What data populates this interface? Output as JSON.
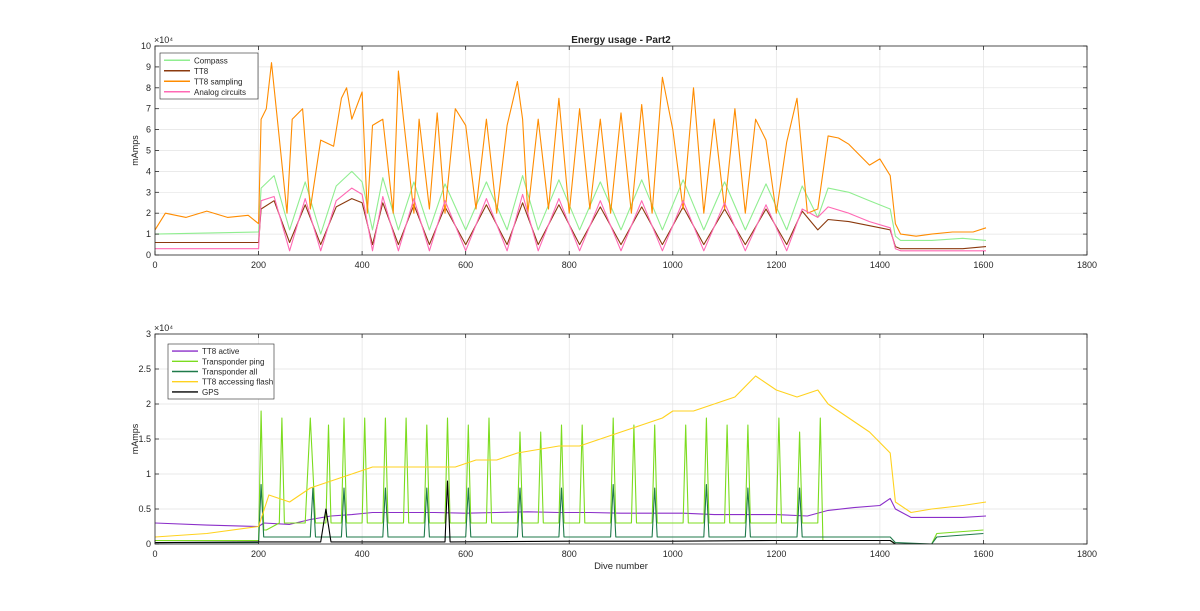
{
  "figure": {
    "title": "Energy usage - Part2"
  },
  "chart_data": [
    {
      "type": "line",
      "title": "Energy usage - Part2",
      "xlabel": "",
      "ylabel": "mAmps",
      "exponent_label": "×10⁴",
      "xlim": [
        0,
        1800
      ],
      "ylim": [
        0,
        10
      ],
      "y_scale_factor": 10000,
      "xticks": [
        0,
        200,
        400,
        600,
        800,
        1000,
        1200,
        1400,
        1600,
        1800
      ],
      "yticks": [
        0,
        1,
        2,
        3,
        4,
        5,
        6,
        7,
        8,
        9,
        10
      ],
      "grid": true,
      "legend_position": "top-left",
      "series": [
        {
          "name": "Compass",
          "color": "#90ee90",
          "x": [
            0,
            200,
            205,
            230,
            260,
            290,
            320,
            350,
            380,
            400,
            420,
            440,
            470,
            500,
            530,
            560,
            600,
            640,
            680,
            710,
            740,
            780,
            820,
            860,
            900,
            940,
            980,
            1020,
            1060,
            1100,
            1140,
            1180,
            1220,
            1250,
            1280,
            1300,
            1340,
            1380,
            1420,
            1430,
            1440,
            1500,
            1560,
            1605
          ],
          "y": [
            1.0,
            1.1,
            3.2,
            3.8,
            1.2,
            3.5,
            1.0,
            3.3,
            4.0,
            3.5,
            1.2,
            3.7,
            1.2,
            3.5,
            1.2,
            3.4,
            1.2,
            3.5,
            1.2,
            3.8,
            1.2,
            3.6,
            1.2,
            3.5,
            1.2,
            3.6,
            1.2,
            3.6,
            1.2,
            3.5,
            1.2,
            3.4,
            1.2,
            3.3,
            1.8,
            3.2,
            3.0,
            2.6,
            2.2,
            0.9,
            0.7,
            0.7,
            0.8,
            0.7
          ]
        },
        {
          "name": "TT8",
          "color": "#8b3a0e",
          "x": [
            0,
            200,
            205,
            230,
            260,
            290,
            320,
            350,
            380,
            400,
            420,
            440,
            470,
            500,
            530,
            560,
            600,
            640,
            680,
            710,
            740,
            780,
            820,
            860,
            900,
            940,
            980,
            1020,
            1060,
            1100,
            1140,
            1180,
            1220,
            1250,
            1280,
            1300,
            1340,
            1380,
            1420,
            1430,
            1440,
            1500,
            1560,
            1605
          ],
          "y": [
            0.6,
            0.6,
            2.2,
            2.6,
            0.6,
            2.4,
            0.5,
            2.3,
            2.7,
            2.5,
            0.5,
            2.5,
            0.5,
            2.4,
            0.5,
            2.3,
            0.5,
            2.4,
            0.5,
            2.5,
            0.5,
            2.4,
            0.5,
            2.3,
            0.5,
            2.3,
            0.5,
            2.3,
            0.5,
            2.2,
            0.5,
            2.2,
            0.5,
            2.1,
            1.2,
            1.7,
            1.6,
            1.4,
            1.2,
            0.4,
            0.3,
            0.3,
            0.3,
            0.4
          ]
        },
        {
          "name": "TT8 sampling",
          "color": "#ff8c00",
          "x": [
            0,
            20,
            60,
            100,
            140,
            180,
            200,
            205,
            215,
            225,
            235,
            255,
            265,
            285,
            300,
            320,
            345,
            360,
            370,
            380,
            400,
            410,
            420,
            440,
            460,
            470,
            480,
            500,
            510,
            530,
            545,
            560,
            580,
            600,
            620,
            640,
            660,
            680,
            700,
            710,
            720,
            740,
            760,
            780,
            800,
            820,
            840,
            860,
            880,
            900,
            920,
            940,
            960,
            980,
            1000,
            1020,
            1040,
            1060,
            1080,
            1100,
            1120,
            1140,
            1160,
            1180,
            1200,
            1220,
            1240,
            1260,
            1280,
            1300,
            1320,
            1340,
            1360,
            1380,
            1400,
            1420,
            1430,
            1440,
            1470,
            1500,
            1540,
            1580,
            1605
          ],
          "y": [
            1.2,
            2.0,
            1.8,
            2.1,
            1.8,
            1.9,
            1.5,
            6.5,
            7.0,
            9.2,
            6.8,
            2.0,
            6.5,
            7.0,
            2.2,
            5.5,
            5.2,
            7.5,
            8.0,
            6.5,
            7.8,
            2.0,
            6.2,
            6.5,
            2.0,
            8.8,
            6.5,
            2.0,
            6.5,
            2.2,
            6.8,
            2.0,
            7.0,
            6.2,
            2.2,
            6.5,
            2.0,
            6.2,
            8.3,
            6.5,
            2.0,
            6.5,
            2.2,
            7.5,
            2.0,
            7.0,
            2.2,
            6.5,
            2.0,
            6.8,
            2.0,
            7.2,
            2.0,
            8.5,
            6.0,
            2.2,
            8.0,
            2.0,
            6.5,
            2.2,
            7.0,
            2.0,
            6.5,
            5.5,
            2.0,
            5.4,
            7.5,
            2.0,
            2.2,
            5.7,
            5.6,
            5.3,
            4.8,
            4.3,
            4.6,
            3.8,
            1.5,
            1.0,
            0.9,
            1.0,
            1.1,
            1.1,
            1.3
          ]
        },
        {
          "name": "Analog circuits",
          "color": "#ff69b4",
          "x": [
            0,
            200,
            205,
            230,
            260,
            290,
            320,
            350,
            380,
            400,
            420,
            440,
            470,
            500,
            530,
            560,
            600,
            640,
            680,
            710,
            740,
            780,
            820,
            860,
            900,
            940,
            980,
            1020,
            1060,
            1100,
            1140,
            1180,
            1220,
            1250,
            1280,
            1300,
            1340,
            1380,
            1420,
            1430,
            1440,
            1500,
            1560,
            1605
          ],
          "y": [
            0.3,
            0.3,
            2.6,
            2.8,
            0.2,
            2.7,
            0.2,
            2.6,
            3.2,
            2.9,
            0.2,
            2.8,
            0.2,
            2.7,
            0.2,
            2.6,
            0.2,
            2.7,
            0.2,
            2.9,
            0.2,
            2.7,
            0.2,
            2.6,
            0.2,
            2.6,
            0.2,
            2.6,
            0.2,
            2.5,
            0.2,
            2.4,
            0.2,
            2.2,
            1.8,
            2.3,
            2.0,
            1.6,
            1.3,
            0.3,
            0.2,
            0.2,
            0.2,
            0.2
          ]
        }
      ]
    },
    {
      "type": "line",
      "title": "",
      "xlabel": "Dive number",
      "ylabel": "mAmps",
      "exponent_label": "×10⁴",
      "xlim": [
        0,
        1800
      ],
      "ylim": [
        0,
        3
      ],
      "y_scale_factor": 10000,
      "xticks": [
        0,
        200,
        400,
        600,
        800,
        1000,
        1200,
        1400,
        1600,
        1800
      ],
      "yticks": [
        0,
        0.5,
        1,
        1.5,
        2,
        2.5,
        3
      ],
      "ytick_labels": [
        "0",
        "0.5",
        "1",
        "1.5",
        "2",
        "2.5",
        "3"
      ],
      "grid": true,
      "legend_position": "top-left",
      "series": [
        {
          "name": "TT8 active",
          "color": "#8b2fc9",
          "x": [
            0,
            100,
            200,
            210,
            260,
            300,
            340,
            380,
            420,
            480,
            540,
            600,
            660,
            720,
            780,
            840,
            900,
            960,
            1020,
            1080,
            1140,
            1200,
            1260,
            1300,
            1350,
            1400,
            1420,
            1430,
            1460,
            1500,
            1560,
            1605
          ],
          "y": [
            0.3,
            0.27,
            0.25,
            0.3,
            0.28,
            0.35,
            0.4,
            0.42,
            0.45,
            0.45,
            0.45,
            0.44,
            0.45,
            0.46,
            0.45,
            0.45,
            0.44,
            0.44,
            0.44,
            0.42,
            0.42,
            0.42,
            0.4,
            0.48,
            0.52,
            0.55,
            0.65,
            0.5,
            0.38,
            0.38,
            0.38,
            0.4
          ]
        },
        {
          "name": "Transponder ping",
          "color": "#7cdc1f",
          "x": [
            0,
            200,
            205,
            210,
            215,
            240,
            245,
            250,
            290,
            300,
            310,
            330,
            335,
            340,
            360,
            365,
            370,
            400,
            405,
            410,
            440,
            445,
            450,
            480,
            485,
            490,
            520,
            525,
            530,
            560,
            565,
            570,
            600,
            605,
            610,
            640,
            645,
            650,
            700,
            705,
            710,
            740,
            745,
            750,
            780,
            785,
            790,
            820,
            825,
            830,
            880,
            885,
            890,
            920,
            925,
            930,
            960,
            965,
            970,
            1020,
            1025,
            1030,
            1060,
            1065,
            1070,
            1100,
            1105,
            1110,
            1140,
            1145,
            1150,
            1200,
            1205,
            1210,
            1240,
            1245,
            1250,
            1280,
            1285,
            1290,
            1420,
            1430,
            1500,
            1510,
            1600
          ],
          "y": [
            0.05,
            0.05,
            1.9,
            0.2,
            0.2,
            0.3,
            1.8,
            0.3,
            0.3,
            1.8,
            0.3,
            0.3,
            1.7,
            0.3,
            0.3,
            1.8,
            0.3,
            0.3,
            1.8,
            0.3,
            0.3,
            1.8,
            0.3,
            0.3,
            1.8,
            0.3,
            0.3,
            1.7,
            0.3,
            0.3,
            1.8,
            0.3,
            0.3,
            1.7,
            0.3,
            0.3,
            1.8,
            0.3,
            0.3,
            1.6,
            0.3,
            0.3,
            1.6,
            0.3,
            0.3,
            1.7,
            0.3,
            0.3,
            1.7,
            0.3,
            0.3,
            1.8,
            0.3,
            0.3,
            1.7,
            0.3,
            0.3,
            1.7,
            0.3,
            0.3,
            1.7,
            0.3,
            0.3,
            1.8,
            0.3,
            0.3,
            1.7,
            0.3,
            0.3,
            1.7,
            0.3,
            0.3,
            1.8,
            0.3,
            0.3,
            1.6,
            0.3,
            0.3,
            1.8,
            0.05,
            0.05,
            0.0,
            0.0,
            0.15,
            0.2
          ]
        },
        {
          "name": "Transponder all",
          "color": "#1f7a4a",
          "x": [
            0,
            200,
            205,
            210,
            260,
            300,
            305,
            310,
            360,
            365,
            370,
            440,
            445,
            450,
            520,
            525,
            530,
            600,
            605,
            610,
            700,
            705,
            710,
            780,
            785,
            790,
            880,
            885,
            890,
            960,
            965,
            970,
            1060,
            1065,
            1070,
            1140,
            1145,
            1150,
            1240,
            1245,
            1250,
            1300,
            1420,
            1430,
            1500,
            1510,
            1600
          ],
          "y": [
            0.02,
            0.02,
            0.85,
            0.1,
            0.1,
            0.1,
            0.8,
            0.1,
            0.1,
            0.8,
            0.1,
            0.1,
            0.8,
            0.1,
            0.1,
            0.8,
            0.1,
            0.1,
            0.8,
            0.1,
            0.1,
            0.8,
            0.1,
            0.1,
            0.8,
            0.1,
            0.1,
            0.85,
            0.1,
            0.1,
            0.8,
            0.1,
            0.1,
            0.85,
            0.1,
            0.1,
            0.8,
            0.1,
            0.1,
            0.8,
            0.1,
            0.1,
            0.1,
            0.02,
            0.0,
            0.1,
            0.15
          ]
        },
        {
          "name": "TT8 accessing flash",
          "color": "#ffd21f",
          "x": [
            0,
            100,
            200,
            220,
            260,
            300,
            340,
            380,
            420,
            460,
            500,
            540,
            580,
            620,
            660,
            700,
            740,
            780,
            820,
            860,
            900,
            940,
            980,
            1000,
            1040,
            1080,
            1120,
            1160,
            1200,
            1240,
            1280,
            1300,
            1340,
            1380,
            1420,
            1430,
            1460,
            1500,
            1560,
            1605
          ],
          "y": [
            0.1,
            0.15,
            0.25,
            0.7,
            0.6,
            0.8,
            0.9,
            1.0,
            1.1,
            1.1,
            1.1,
            1.1,
            1.1,
            1.2,
            1.2,
            1.3,
            1.35,
            1.4,
            1.4,
            1.5,
            1.6,
            1.7,
            1.8,
            1.9,
            1.9,
            2.0,
            2.1,
            2.4,
            2.2,
            2.1,
            2.2,
            2.0,
            1.8,
            1.6,
            1.3,
            0.6,
            0.45,
            0.5,
            0.55,
            0.6
          ]
        },
        {
          "name": "GPS",
          "color": "#000000",
          "x": [
            0,
            200,
            320,
            330,
            340,
            500,
            560,
            565,
            570,
            800,
            1000,
            1200,
            1400,
            1420,
            1430,
            1605
          ],
          "y": [
            0.02,
            0.03,
            0.03,
            0.5,
            0.03,
            0.03,
            0.03,
            0.9,
            0.03,
            0.04,
            0.04,
            0.05,
            0.05,
            0.05,
            0.0,
            0.0
          ]
        }
      ]
    }
  ]
}
